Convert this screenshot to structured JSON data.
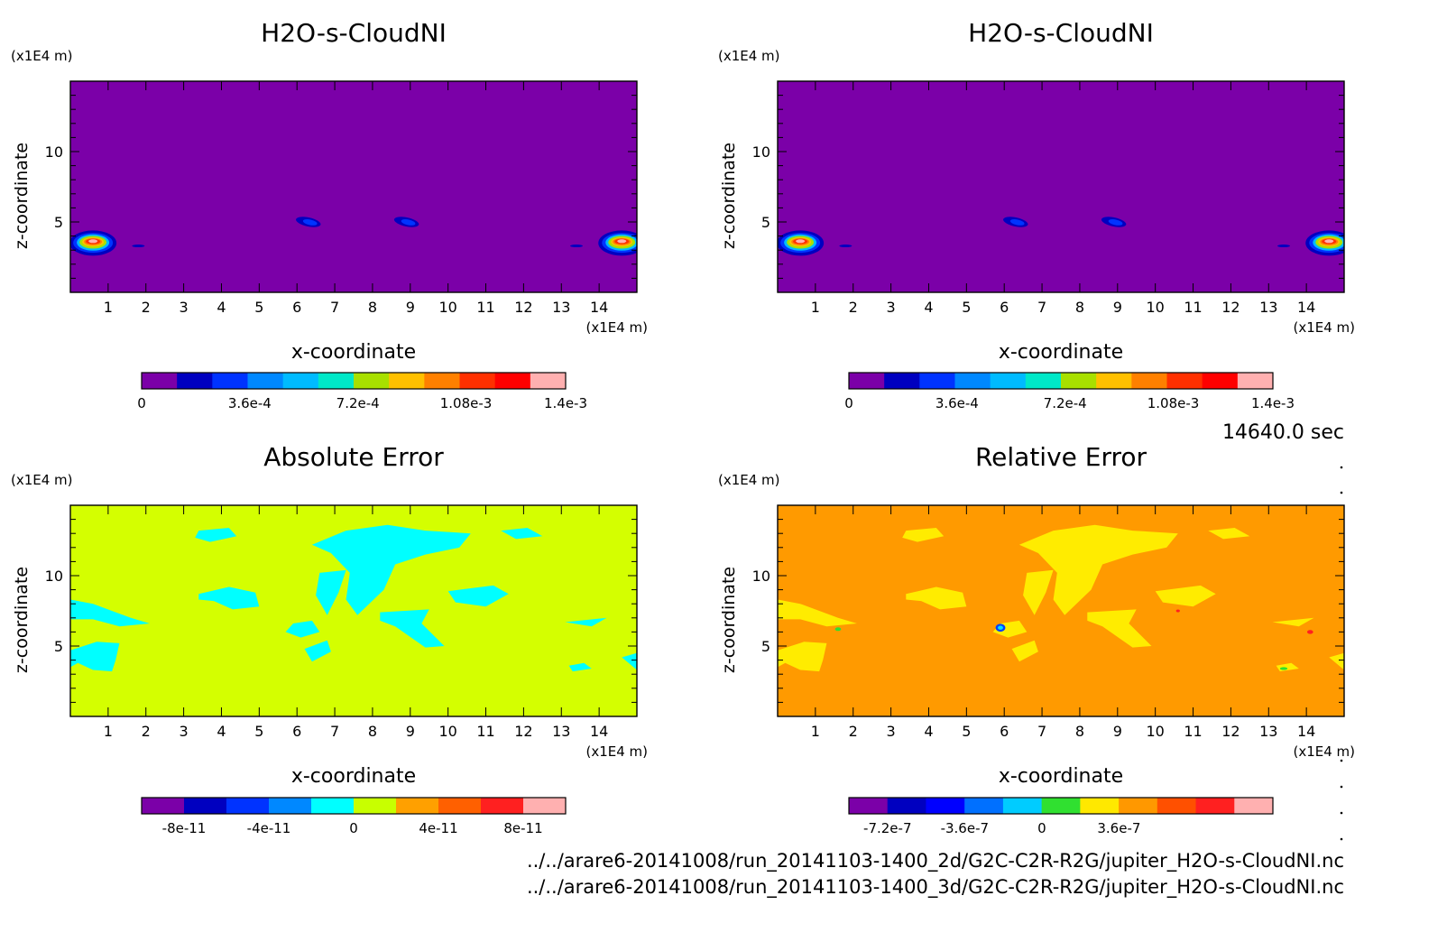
{
  "chart_data": [
    {
      "type": "heatmap",
      "title": "H2O-s-CloudNI",
      "xlabel": "x-coordinate",
      "ylabel": "z-coordinate",
      "x_unit": "(x1E4 m)",
      "y_unit": "(x1E4 m)",
      "xlim": [
        0,
        15
      ],
      "ylim": [
        0,
        15
      ],
      "xticks": [
        "1",
        "2",
        "3",
        "4",
        "5",
        "6",
        "7",
        "8",
        "9",
        "10",
        "11",
        "12",
        "13",
        "14"
      ],
      "yticks": [
        "5",
        "10"
      ],
      "colorbar": {
        "colors": [
          "#7b00a8",
          "#0000c0",
          "#0033ff",
          "#0088ff",
          "#00bbff",
          "#00e8c8",
          "#a8e000",
          "#ffc000",
          "#ff8000",
          "#ff3000",
          "#ff0000",
          "#ffb0b0"
        ],
        "tick_labels": [
          "0",
          "3.6e-4",
          "7.2e-4",
          "1.08e-3",
          "1.4e-3"
        ]
      },
      "background": "#7b00a8",
      "features": [
        {
          "x": 0.6,
          "z": 3.5,
          "level": "peak"
        },
        {
          "x": 14.6,
          "z": 3.5,
          "level": "peak"
        },
        {
          "x": 6.3,
          "z": 5.0,
          "level": "low"
        },
        {
          "x": 8.9,
          "z": 5.0,
          "level": "low"
        }
      ]
    },
    {
      "type": "heatmap",
      "title": "H2O-s-CloudNI",
      "xlabel": "x-coordinate",
      "ylabel": "z-coordinate",
      "x_unit": "(x1E4 m)",
      "y_unit": "(x1E4 m)",
      "xlim": [
        0,
        15
      ],
      "ylim": [
        0,
        15
      ],
      "xticks": [
        "1",
        "2",
        "3",
        "4",
        "5",
        "6",
        "7",
        "8",
        "9",
        "10",
        "11",
        "12",
        "13",
        "14"
      ],
      "yticks": [
        "5",
        "10"
      ],
      "colorbar": {
        "colors": [
          "#7b00a8",
          "#0000c0",
          "#0033ff",
          "#0088ff",
          "#00bbff",
          "#00e8c8",
          "#a8e000",
          "#ffc000",
          "#ff8000",
          "#ff3000",
          "#ff0000",
          "#ffb0b0"
        ],
        "tick_labels": [
          "0",
          "3.6e-4",
          "7.2e-4",
          "1.08e-3",
          "1.4e-3"
        ]
      },
      "background": "#7b00a8",
      "features": [
        {
          "x": 0.6,
          "z": 3.5,
          "level": "peak"
        },
        {
          "x": 14.6,
          "z": 3.5,
          "level": "peak"
        },
        {
          "x": 6.3,
          "z": 5.0,
          "level": "low"
        },
        {
          "x": 8.9,
          "z": 5.0,
          "level": "low"
        }
      ]
    },
    {
      "type": "heatmap",
      "title": "Absolute Error",
      "xlabel": "x-coordinate",
      "ylabel": "z-coordinate",
      "x_unit": "(x1E4 m)",
      "y_unit": "(x1E4 m)",
      "xlim": [
        0,
        15
      ],
      "ylim": [
        0,
        15
      ],
      "xticks": [
        "1",
        "2",
        "3",
        "4",
        "5",
        "6",
        "7",
        "8",
        "9",
        "10",
        "11",
        "12",
        "13",
        "14"
      ],
      "yticks": [
        "5",
        "10"
      ],
      "colorbar": {
        "colors": [
          "#7b00a8",
          "#0000c0",
          "#0033ff",
          "#0088ff",
          "#00ffff",
          "#c8ff00",
          "#ffa000",
          "#ff6000",
          "#ff2020",
          "#ffb0b0"
        ],
        "tick_labels": [
          "-8e-11",
          "-4e-11",
          "0",
          "4e-11",
          "8e-11"
        ]
      },
      "background": "#d4ff00",
      "patch_color": "#00ffff"
    },
    {
      "type": "heatmap",
      "title": "Relative Error",
      "xlabel": "x-coordinate",
      "ylabel": "z-coordinate",
      "x_unit": "(x1E4 m)",
      "y_unit": "(x1E4 m)",
      "xlim": [
        0,
        15
      ],
      "ylim": [
        0,
        15
      ],
      "xticks": [
        "1",
        "2",
        "3",
        "4",
        "5",
        "6",
        "7",
        "8",
        "9",
        "10",
        "11",
        "12",
        "13",
        "14"
      ],
      "yticks": [
        "5",
        "10"
      ],
      "colorbar": {
        "colors": [
          "#7b00a8",
          "#0000c0",
          "#0000ff",
          "#0070ff",
          "#00ccff",
          "#30e030",
          "#ffe800",
          "#ff9800",
          "#ff5000",
          "#ff2020",
          "#ffb0b0"
        ],
        "tick_labels": [
          "-7.2e-7",
          "-3.6e-7",
          "0",
          "3.6e-7"
        ]
      },
      "background": "#ff9a00",
      "patch_color": "#ffec00"
    }
  ],
  "time_label": "14640.0 sec",
  "files": [
    "../../arare6-20141008/run_20141103-1400_2d/G2C-C2R-R2G/jupiter_H2O-s-CloudNI.nc",
    "../../arare6-20141008/run_20141103-1400_3d/G2C-C2R-R2G/jupiter_H2O-s-CloudNI.nc"
  ]
}
